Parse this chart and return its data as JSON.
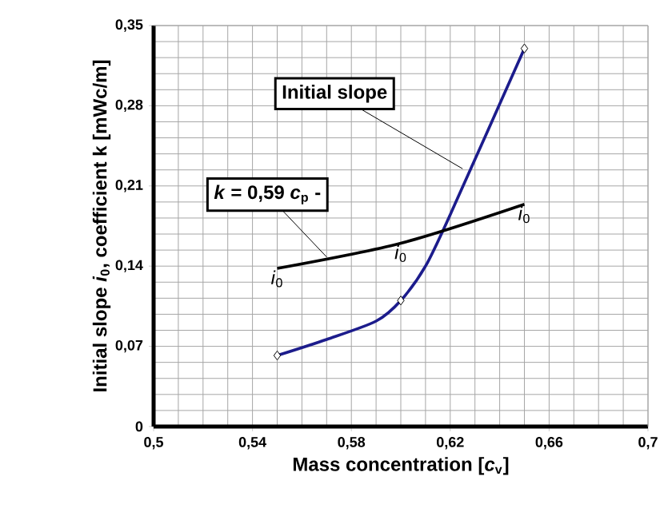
{
  "chart_data": {
    "type": "line",
    "xlabel": "Mass concentration [*c*$_{v}$]",
    "ylabel": "Initial slope *i*$_{0}$, coefficient  k [mWc/m]",
    "xlim": [
      0.5,
      0.7
    ],
    "xticks": [
      {
        "value": 0.5,
        "label": "0,5"
      },
      {
        "value": 0.54,
        "label": "0,54"
      },
      {
        "value": 0.58,
        "label": "0,58"
      },
      {
        "value": 0.62,
        "label": "0,62"
      },
      {
        "value": 0.66,
        "label": "0,66"
      },
      {
        "value": 0.7,
        "label": "0,7"
      }
    ],
    "ylim": [
      0,
      0.35
    ],
    "yticks": [
      0,
      {
        "value": 0.07,
        "label": "0,07"
      },
      {
        "value": 0.14,
        "label": "0,14"
      },
      {
        "value": 0.21,
        "label": "0,21"
      },
      {
        "value": 0.28,
        "label": "0,28"
      },
      {
        "value": 0.35,
        "label": "0,35"
      }
    ],
    "grid": true,
    "series": [
      {
        "color": "#1c1c8c",
        "marker": "none",
        "x": [
          0.55,
          0.57,
          0.59,
          0.6,
          0.61,
          0.62,
          0.65
        ],
        "values": [
          0.062,
          0.076,
          0.092,
          0.11,
          0.14,
          0.185,
          0.33
        ]
      },
      {
        "type": "scatter",
        "color": "#ffffff",
        "marker": "diamond",
        "x": [
          0.55,
          0.6,
          0.65
        ],
        "values": [
          0.062,
          0.11,
          0.33
        ]
      },
      {
        "color": "#000000",
        "marker": "none",
        "x": [
          0.55,
          0.6,
          0.65
        ],
        "values": [
          0.138,
          0.16,
          0.194
        ]
      }
    ],
    "annotations": [
      {
        "text": "Initial slope",
        "x": 0.625,
        "y": 0.225
      },
      {
        "text": "*k* = 0,59 *c*$_{p}$ -",
        "x": 0.57,
        "y": 0.148
      },
      {
        "text": "*i*$_{0}$",
        "x": 0.55,
        "y": 0.138
      },
      {
        "text": "*i*$_{0}$",
        "x": 0.6,
        "y": 0.16
      },
      {
        "text": "*i*$_{0}$",
        "x": 0.65,
        "y": 0.194
      }
    ]
  }
}
